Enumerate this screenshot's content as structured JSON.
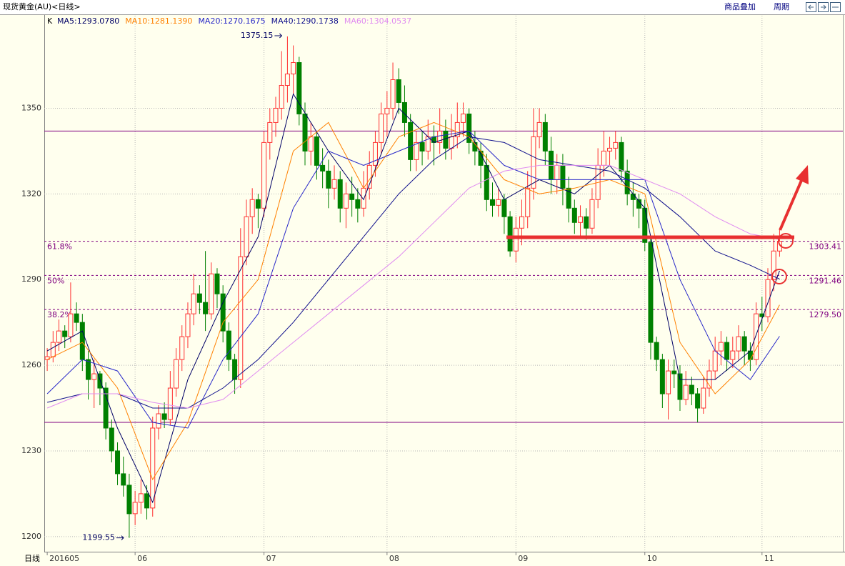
{
  "header": {
    "title": "现货黄金(AU)<日线>",
    "links": [
      "商品叠加",
      "周期"
    ]
  },
  "chart_data": {
    "type": "candlestick",
    "indicator": "K",
    "period_label": "日线",
    "ylim": [
      1194.7,
      1382.4
    ],
    "yticks": [
      1200,
      1230,
      1260,
      1290,
      1320,
      1350
    ],
    "xlim": [
      -0.5,
      135.8
    ],
    "xticks": [
      {
        "value": 0,
        "label": "201605"
      },
      {
        "value": 15,
        "label": "06"
      },
      {
        "value": 37,
        "label": "07"
      },
      {
        "value": 58,
        "label": "08"
      },
      {
        "value": 80,
        "label": "09"
      },
      {
        "value": 102,
        "label": "10"
      },
      {
        "value": 122,
        "label": "11"
      }
    ],
    "up_color": "#ff3030",
    "down_color": "#008000",
    "background": "#ffffee",
    "grid": true,
    "candles": [
      [
        1262,
        1266,
        1258,
        1263
      ],
      [
        1263,
        1272,
        1261,
        1268
      ],
      [
        1268,
        1276,
        1265,
        1272
      ],
      [
        1272,
        1274,
        1266,
        1270
      ],
      [
        1270,
        1289,
        1268,
        1278
      ],
      [
        1278,
        1282,
        1272,
        1275
      ],
      [
        1275,
        1278,
        1258,
        1262
      ],
      [
        1262,
        1265,
        1248,
        1255
      ],
      [
        1255,
        1262,
        1245,
        1257
      ],
      [
        1257,
        1258,
        1246,
        1252
      ],
      [
        1252,
        1254,
        1234,
        1238
      ],
      [
        1238,
        1241,
        1226,
        1230
      ],
      [
        1230,
        1233,
        1218,
        1222
      ],
      [
        1222,
        1228,
        1214,
        1218
      ],
      [
        1218,
        1222,
        1199.55,
        1208
      ],
      [
        1208,
        1216,
        1204,
        1212
      ],
      [
        1212,
        1220,
        1208,
        1215
      ],
      [
        1215,
        1218,
        1206,
        1210
      ],
      [
        1210,
        1242,
        1207,
        1238
      ],
      [
        1238,
        1246,
        1234,
        1243
      ],
      [
        1243,
        1247,
        1238,
        1241
      ],
      [
        1241,
        1258,
        1239,
        1252
      ],
      [
        1252,
        1266,
        1249,
        1262
      ],
      [
        1262,
        1274,
        1258,
        1270
      ],
      [
        1270,
        1282,
        1266,
        1278
      ],
      [
        1278,
        1292,
        1274,
        1285
      ],
      [
        1285,
        1288,
        1278,
        1282
      ],
      [
        1282,
        1300,
        1272,
        1278
      ],
      [
        1278,
        1296,
        1276,
        1292
      ],
      [
        1292,
        1294,
        1280,
        1285
      ],
      [
        1285,
        1288,
        1268,
        1272
      ],
      [
        1272,
        1275,
        1258,
        1262
      ],
      [
        1262,
        1264,
        1250,
        1255
      ],
      [
        1255,
        1308,
        1252,
        1298
      ],
      [
        1298,
        1318,
        1295,
        1312
      ],
      [
        1312,
        1322,
        1306,
        1318
      ],
      [
        1318,
        1320,
        1308,
        1315
      ],
      [
        1315,
        1342,
        1312,
        1338
      ],
      [
        1338,
        1350,
        1332,
        1345
      ],
      [
        1345,
        1354,
        1340,
        1350
      ],
      [
        1350,
        1370,
        1346,
        1358
      ],
      [
        1358,
        1375.15,
        1352,
        1362
      ],
      [
        1362,
        1372,
        1355,
        1366
      ],
      [
        1366,
        1368,
        1344,
        1348
      ],
      [
        1348,
        1352,
        1330,
        1335
      ],
      [
        1335,
        1345,
        1330,
        1340
      ],
      [
        1340,
        1342,
        1325,
        1330
      ],
      [
        1330,
        1336,
        1322,
        1328
      ],
      [
        1328,
        1332,
        1315,
        1322
      ],
      [
        1322,
        1330,
        1318,
        1325
      ],
      [
        1325,
        1328,
        1310,
        1315
      ],
      [
        1315,
        1324,
        1308,
        1320
      ],
      [
        1320,
        1326,
        1312,
        1318
      ],
      [
        1318,
        1322,
        1310,
        1315
      ],
      [
        1315,
        1328,
        1312,
        1322
      ],
      [
        1322,
        1335,
        1318,
        1330
      ],
      [
        1330,
        1342,
        1326,
        1338
      ],
      [
        1338,
        1352,
        1334,
        1348
      ],
      [
        1348,
        1356,
        1340,
        1350
      ],
      [
        1350,
        1366,
        1346,
        1360
      ],
      [
        1360,
        1364,
        1348,
        1352
      ],
      [
        1352,
        1358,
        1340,
        1345
      ],
      [
        1345,
        1348,
        1328,
        1332
      ],
      [
        1332,
        1342,
        1328,
        1338
      ],
      [
        1338,
        1342,
        1330,
        1335
      ],
      [
        1335,
        1346,
        1332,
        1340
      ],
      [
        1340,
        1344,
        1330,
        1338
      ],
      [
        1338,
        1350,
        1334,
        1342
      ],
      [
        1342,
        1346,
        1332,
        1336
      ],
      [
        1336,
        1348,
        1332,
        1340
      ],
      [
        1340,
        1352,
        1336,
        1345
      ],
      [
        1345,
        1352,
        1340,
        1348
      ],
      [
        1348,
        1350,
        1334,
        1338
      ],
      [
        1338,
        1342,
        1330,
        1335
      ],
      [
        1335,
        1338,
        1322,
        1330
      ],
      [
        1330,
        1334,
        1314,
        1318
      ],
      [
        1318,
        1324,
        1312,
        1316
      ],
      [
        1316,
        1322,
        1312,
        1318
      ],
      [
        1318,
        1320,
        1306,
        1312
      ],
      [
        1312,
        1314,
        1298,
        1300
      ],
      [
        1300,
        1312,
        1296,
        1308
      ],
      [
        1308,
        1318,
        1302,
        1312
      ],
      [
        1312,
        1328,
        1308,
        1322
      ],
      [
        1322,
        1350,
        1318,
        1340
      ],
      [
        1340,
        1350,
        1336,
        1345
      ],
      [
        1345,
        1348,
        1330,
        1335
      ],
      [
        1335,
        1340,
        1320,
        1325
      ],
      [
        1325,
        1334,
        1320,
        1330
      ],
      [
        1330,
        1334,
        1316,
        1322
      ],
      [
        1322,
        1326,
        1310,
        1315
      ],
      [
        1315,
        1318,
        1306,
        1310
      ],
      [
        1310,
        1316,
        1305,
        1312
      ],
      [
        1312,
        1315,
        1304,
        1308
      ],
      [
        1308,
        1322,
        1306,
        1318
      ],
      [
        1318,
        1336,
        1315,
        1330
      ],
      [
        1330,
        1342,
        1326,
        1335
      ],
      [
        1335,
        1340,
        1330,
        1336
      ],
      [
        1336,
        1342,
        1332,
        1338
      ],
      [
        1338,
        1340,
        1324,
        1328
      ],
      [
        1328,
        1332,
        1316,
        1320
      ],
      [
        1320,
        1324,
        1312,
        1318
      ],
      [
        1318,
        1320,
        1308,
        1315
      ],
      [
        1315,
        1318,
        1300,
        1303
      ],
      [
        1303,
        1305,
        1262,
        1268
      ],
      [
        1268,
        1270,
        1258,
        1262
      ],
      [
        1262,
        1264,
        1245,
        1250
      ],
      [
        1250,
        1262,
        1241,
        1258
      ],
      [
        1258,
        1262,
        1252,
        1257
      ],
      [
        1257,
        1260,
        1244,
        1248
      ],
      [
        1248,
        1258,
        1246,
        1253
      ],
      [
        1253,
        1256,
        1246,
        1250
      ],
      [
        1250,
        1252,
        1240,
        1245
      ],
      [
        1245,
        1256,
        1243,
        1252
      ],
      [
        1252,
        1262,
        1249,
        1258
      ],
      [
        1258,
        1270,
        1255,
        1265
      ],
      [
        1265,
        1272,
        1260,
        1268
      ],
      [
        1268,
        1270,
        1258,
        1262
      ],
      [
        1262,
        1270,
        1259,
        1265
      ],
      [
        1265,
        1274,
        1262,
        1270
      ],
      [
        1270,
        1272,
        1260,
        1265
      ],
      [
        1265,
        1268,
        1258,
        1262
      ],
      [
        1262,
        1282,
        1260,
        1278
      ],
      [
        1278,
        1284,
        1272,
        1277
      ],
      [
        1277,
        1294,
        1275,
        1290
      ],
      [
        1290,
        1306,
        1286,
        1300
      ],
      [
        1300,
        1308,
        1298,
        1303.41
      ]
    ],
    "series": [
      {
        "name": "MA5:1293.0780",
        "color": "#000066",
        "x": [
          0,
          6,
          12,
          18,
          24,
          30,
          36,
          42,
          48,
          54,
          60,
          66,
          72,
          78,
          84,
          90,
          96,
          102,
          108,
          114,
          120,
          125
        ],
        "values": [
          1265,
          1272,
          1238,
          1212,
          1255,
          1282,
          1305,
          1355,
          1335,
          1318,
          1350,
          1338,
          1342,
          1318,
          1325,
          1320,
          1330,
          1315,
          1255,
          1255,
          1265,
          1293.078
        ]
      },
      {
        "name": "MA10:1281.1390",
        "color": "#ff8000",
        "x": [
          0,
          6,
          12,
          18,
          24,
          30,
          36,
          42,
          48,
          54,
          60,
          66,
          72,
          78,
          84,
          90,
          96,
          102,
          108,
          114,
          120,
          125
        ],
        "values": [
          1262,
          1268,
          1252,
          1220,
          1240,
          1275,
          1290,
          1335,
          1345,
          1322,
          1340,
          1345,
          1340,
          1325,
          1320,
          1322,
          1325,
          1320,
          1268,
          1250,
          1262,
          1281.139
        ]
      },
      {
        "name": "MA20:1270.1675",
        "color": "#2828c8",
        "x": [
          0,
          6,
          12,
          18,
          24,
          30,
          36,
          42,
          48,
          54,
          60,
          66,
          72,
          78,
          84,
          90,
          96,
          102,
          108,
          114,
          120,
          125
        ],
        "values": [
          1250,
          1262,
          1258,
          1240,
          1238,
          1262,
          1278,
          1315,
          1335,
          1330,
          1335,
          1340,
          1342,
          1330,
          1325,
          1325,
          1325,
          1325,
          1290,
          1265,
          1255,
          1270.1675
        ]
      },
      {
        "name": "MA40:1290.1738",
        "color": "#10108c",
        "x": [
          0,
          6,
          12,
          18,
          24,
          30,
          36,
          42,
          48,
          54,
          60,
          66,
          72,
          78,
          84,
          90,
          96,
          102,
          108,
          114,
          120,
          125
        ],
        "values": [
          1247,
          1250,
          1250,
          1245,
          1245,
          1252,
          1262,
          1275,
          1290,
          1305,
          1320,
          1332,
          1340,
          1338,
          1332,
          1330,
          1328,
          1322,
          1312,
          1300,
          1295,
          1290.1738
        ]
      },
      {
        "name": "MA60:1304.0537",
        "color": "#e08cf0",
        "x": [
          0,
          6,
          12,
          18,
          24,
          30,
          36,
          42,
          48,
          54,
          60,
          66,
          72,
          78,
          84,
          90,
          96,
          102,
          108,
          114,
          120,
          125
        ],
        "values": [
          1245,
          1250,
          1250,
          1247,
          1245,
          1248,
          1258,
          1268,
          1278,
          1288,
          1298,
          1310,
          1322,
          1328,
          1330,
          1330,
          1330,
          1325,
          1320,
          1312,
          1306,
          1304.0537
        ]
      }
    ],
    "hlines": [
      1342,
      1240
    ],
    "hline_color": "#800080",
    "fib_levels": [
      {
        "value": 1303.41,
        "label": "61.8%",
        "value_label": "1303.41"
      },
      {
        "value": 1291.46,
        "label": "50%",
        "value_label": "1291.46"
      },
      {
        "value": 1279.5,
        "label": "38.2%",
        "value_label": "1279.50"
      }
    ],
    "annotations": [
      {
        "text": "1375.15",
        "value": 1375.15
      },
      {
        "text": "1199.55",
        "value": 1199.55
      }
    ]
  }
}
